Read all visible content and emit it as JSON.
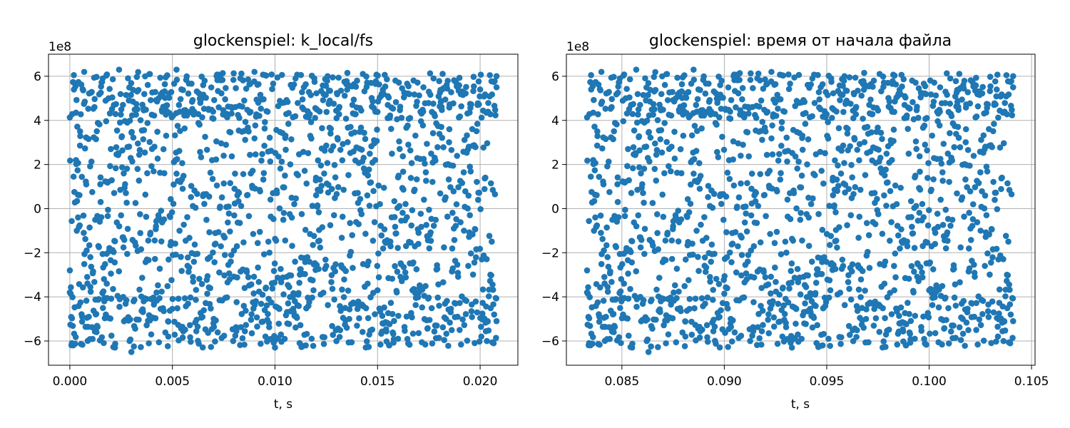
{
  "chart_data": [
    {
      "type": "scatter",
      "title": "glockenspiel: k_local/fs",
      "xlabel": "t, s",
      "ylabel": "",
      "y_offset_label": "1e8",
      "xlim": [
        -0.00104,
        0.02184
      ],
      "ylim": [
        -7.1,
        7.0
      ],
      "xticks": [
        0.0,
        0.005,
        0.01,
        0.015,
        0.02
      ],
      "xtick_labels": [
        "0.000",
        "0.005",
        "0.010",
        "0.015",
        "0.020"
      ],
      "yticks": [
        -6,
        -4,
        -2,
        0,
        2,
        4,
        6
      ],
      "ytick_labels": [
        "−6",
        "−4",
        "−2",
        "0",
        "2",
        "4",
        "6"
      ],
      "grid": true,
      "color": "#1f77b4",
      "x_start": 0.0,
      "x_end": 0.0208,
      "n_points": 1600,
      "series": [
        {
          "values_note_free": true,
          "points": [
            [
              0.0,
              -3.8
            ],
            [
              0.0,
              -2.8
            ],
            [
              0.0001,
              -6.1
            ],
            [
              0.0002,
              5.4
            ],
            [
              0.0003,
              2.2
            ],
            [
              0.0004,
              -0.4
            ],
            [
              0.0005,
              3.5
            ],
            [
              0.0006,
              -4.9
            ],
            [
              0.0007,
              6.2
            ],
            [
              0.0008,
              1.1
            ],
            [
              0.001,
              -2.2
            ],
            [
              0.0012,
              4.6
            ],
            [
              0.0013,
              -5.6
            ],
            [
              0.0015,
              0.3
            ],
            [
              0.0016,
              5.9
            ],
            [
              0.0018,
              -3.4
            ],
            [
              0.002,
              2.7
            ],
            [
              0.0022,
              -6.3
            ],
            [
              0.0024,
              6.3
            ],
            [
              0.0026,
              -1.3
            ],
            [
              0.0028,
              3.9
            ],
            [
              0.003,
              -6.5
            ],
            [
              0.0033,
              1.8
            ],
            [
              0.0036,
              -4.2
            ],
            [
              0.0039,
              6.1
            ],
            [
              0.0042,
              -0.8
            ],
            [
              0.0045,
              4.4
            ],
            [
              0.0048,
              -5.8
            ],
            [
              0.0052,
              6.3
            ],
            [
              0.0055,
              0.9
            ],
            [
              0.006,
              -3.1
            ],
            [
              0.0065,
              5.6
            ],
            [
              0.007,
              -5.2
            ],
            [
              0.0075,
              2.4
            ],
            [
              0.008,
              -1.9
            ],
            [
              0.0085,
              4.9
            ],
            [
              0.009,
              6.2
            ],
            [
              0.0095,
              -4.6
            ],
            [
              0.01,
              -6.3
            ],
            [
              0.0105,
              3.2
            ],
            [
              0.011,
              5.9
            ],
            [
              0.0115,
              -6.2
            ],
            [
              0.012,
              1.4
            ],
            [
              0.0125,
              -2.6
            ],
            [
              0.013,
              4.1
            ],
            [
              0.0135,
              -5.4
            ],
            [
              0.014,
              5.8
            ],
            [
              0.0145,
              0.6
            ],
            [
              0.015,
              -3.7
            ],
            [
              0.0155,
              4.7
            ],
            [
              0.016,
              -5.9
            ],
            [
              0.0165,
              2.9
            ],
            [
              0.017,
              -1.1
            ],
            [
              0.0175,
              5.3
            ],
            [
              0.018,
              -4.4
            ],
            [
              0.0185,
              3.6
            ],
            [
              0.019,
              -5.5
            ],
            [
              0.0195,
              1.9
            ],
            [
              0.02,
              5.4
            ],
            [
              0.0205,
              -3.0
            ],
            [
              0.0208,
              5.5
            ],
            [
              0.0208,
              -5.1
            ]
          ]
        }
      ]
    },
    {
      "type": "scatter",
      "title": "glockenspiel: время от начала файла",
      "xlabel": "t, s",
      "ylabel": "",
      "y_offset_label": "1e8",
      "xlim": [
        0.08229,
        0.10517
      ],
      "ylim": [
        -7.1,
        7.0
      ],
      "xticks": [
        0.085,
        0.09,
        0.095,
        0.1,
        0.105
      ],
      "xtick_labels": [
        "0.085",
        "0.090",
        "0.095",
        "0.100",
        "0.105"
      ],
      "yticks": [
        -6,
        -4,
        -2,
        0,
        2,
        4,
        6
      ],
      "ytick_labels": [
        "−6",
        "−4",
        "−2",
        "0",
        "2",
        "4",
        "6"
      ],
      "grid": true,
      "color": "#1f77b4",
      "x_start": 0.0833,
      "x_end": 0.1041,
      "n_points": 1600,
      "series": [
        {
          "points": [
            [
              0.0833,
              -3.8
            ],
            [
              0.0833,
              -2.8
            ],
            [
              0.0834,
              -6.1
            ],
            [
              0.0835,
              5.4
            ],
            [
              0.0836,
              2.2
            ],
            [
              0.0837,
              -0.4
            ],
            [
              0.0838,
              3.5
            ],
            [
              0.0839,
              -4.9
            ],
            [
              0.084,
              6.2
            ],
            [
              0.0841,
              1.1
            ],
            [
              0.0843,
              -2.2
            ],
            [
              0.0845,
              4.6
            ],
            [
              0.0846,
              -5.6
            ],
            [
              0.0848,
              0.3
            ],
            [
              0.0849,
              5.9
            ],
            [
              0.0851,
              -3.4
            ],
            [
              0.0853,
              2.7
            ],
            [
              0.0855,
              -6.3
            ],
            [
              0.0857,
              6.3
            ],
            [
              0.0859,
              -1.3
            ],
            [
              0.0861,
              3.9
            ],
            [
              0.0863,
              -6.5
            ],
            [
              0.0866,
              1.8
            ],
            [
              0.0869,
              -4.2
            ],
            [
              0.0872,
              6.1
            ],
            [
              0.0875,
              -0.8
            ],
            [
              0.0878,
              4.4
            ],
            [
              0.0881,
              -5.8
            ],
            [
              0.0885,
              6.3
            ],
            [
              0.0888,
              0.9
            ],
            [
              0.0893,
              -3.1
            ],
            [
              0.0898,
              5.6
            ],
            [
              0.0903,
              -5.2
            ],
            [
              0.0908,
              2.4
            ],
            [
              0.0913,
              -1.9
            ],
            [
              0.0918,
              4.9
            ],
            [
              0.0923,
              6.2
            ],
            [
              0.0928,
              -4.6
            ],
            [
              0.0933,
              -6.3
            ],
            [
              0.0938,
              3.2
            ],
            [
              0.0943,
              5.9
            ],
            [
              0.0948,
              -6.2
            ],
            [
              0.0953,
              1.4
            ],
            [
              0.0958,
              -2.6
            ],
            [
              0.0963,
              4.1
            ],
            [
              0.0968,
              -5.4
            ],
            [
              0.0973,
              5.8
            ],
            [
              0.0978,
              0.6
            ],
            [
              0.0983,
              -3.7
            ],
            [
              0.0988,
              4.7
            ],
            [
              0.0993,
              -5.9
            ],
            [
              0.0998,
              2.9
            ],
            [
              0.1003,
              -1.1
            ],
            [
              0.1008,
              5.3
            ],
            [
              0.1013,
              -4.4
            ],
            [
              0.1018,
              3.6
            ],
            [
              0.1023,
              -5.5
            ],
            [
              0.1028,
              1.9
            ],
            [
              0.1033,
              5.4
            ],
            [
              0.1038,
              -3.0
            ],
            [
              0.1041,
              5.5
            ],
            [
              0.1041,
              -5.1
            ]
          ]
        }
      ]
    }
  ]
}
